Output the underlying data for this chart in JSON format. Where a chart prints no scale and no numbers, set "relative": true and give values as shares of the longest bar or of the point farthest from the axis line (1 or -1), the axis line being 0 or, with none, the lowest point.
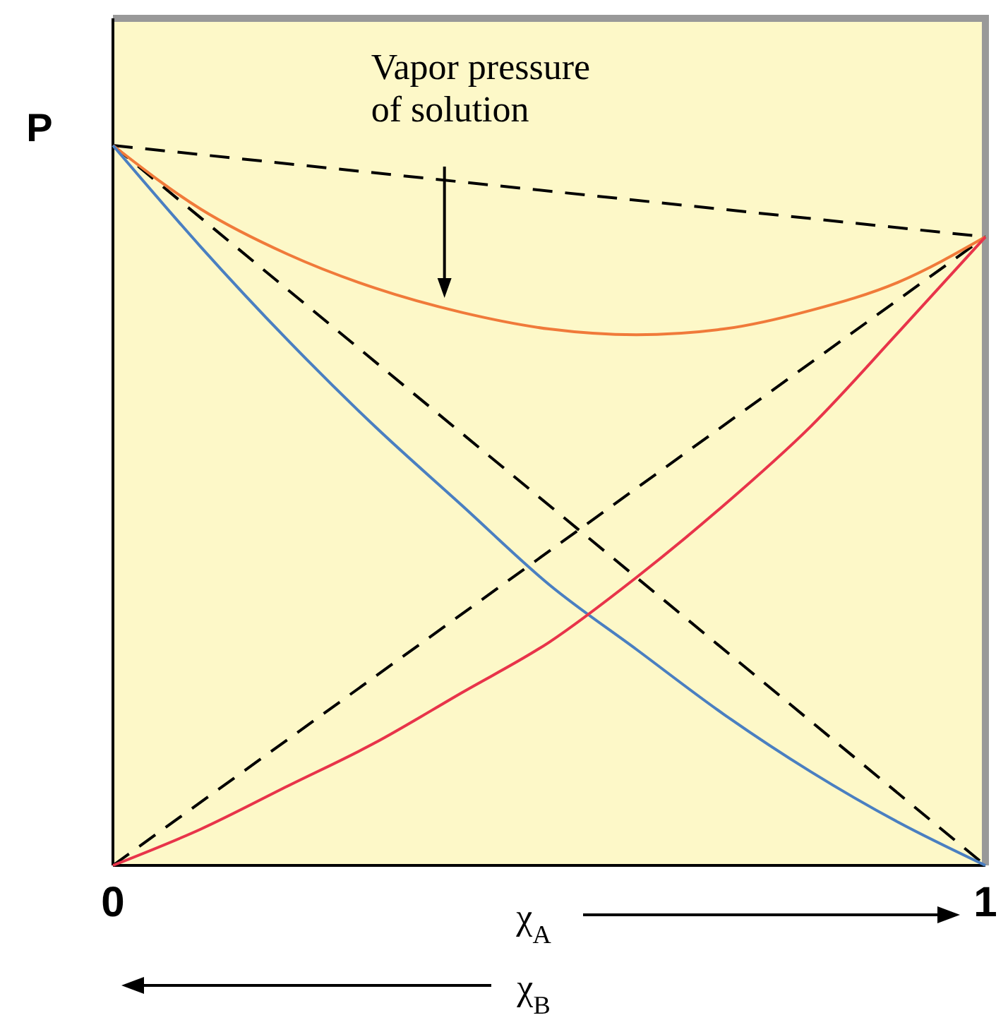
{
  "chart_data": {
    "type": "line",
    "relative": true,
    "ylabel": "P",
    "xlabel": "χ$_{A}$",
    "xlim": [
      0,
      1
    ],
    "xticks": [
      0,
      1
    ],
    "tick_labels": "x",
    "series": [
      {
        "color": "#000000",
        "line_style": "dashed",
        "x": [
          0,
          1
        ],
        "values": [
          1,
          0.873
        ]
      },
      {
        "color": "#000000",
        "line_style": "dashed",
        "x": [
          0,
          1
        ],
        "values": [
          1,
          0
        ]
      },
      {
        "color": "#000000",
        "line_style": "dashed",
        "x": [
          0,
          1
        ],
        "values": [
          0,
          0.873
        ]
      },
      {
        "color": "#f07a3a",
        "line_style": "solid",
        "x": [
          0,
          0.1,
          0.2,
          0.3,
          0.4,
          0.5,
          0.6,
          0.7,
          0.8,
          0.9,
          1
        ],
        "values": [
          1,
          0.912,
          0.849,
          0.802,
          0.768,
          0.745,
          0.737,
          0.745,
          0.771,
          0.81,
          0.873
        ]
      },
      {
        "color": "#4a7fc1",
        "line_style": "solid",
        "x": [
          0,
          0.1,
          0.2,
          0.3,
          0.4,
          0.5,
          0.6,
          0.7,
          0.8,
          0.9,
          1
        ],
        "values": [
          1,
          0.86,
          0.73,
          0.61,
          0.5,
          0.39,
          0.3,
          0.21,
          0.13,
          0.06,
          0
        ]
      },
      {
        "color": "#e8344a",
        "line_style": "solid",
        "x": [
          0,
          0.1,
          0.2,
          0.3,
          0.4,
          0.5,
          0.6,
          0.7,
          0.8,
          0.9,
          1
        ],
        "values": [
          0,
          0.05,
          0.11,
          0.17,
          0.24,
          0.31,
          0.4,
          0.5,
          0.61,
          0.74,
          0.873
        ]
      }
    ],
    "annotations": [
      "Vapor pressure of solution",
      "χ$_{B}$"
    ]
  }
}
